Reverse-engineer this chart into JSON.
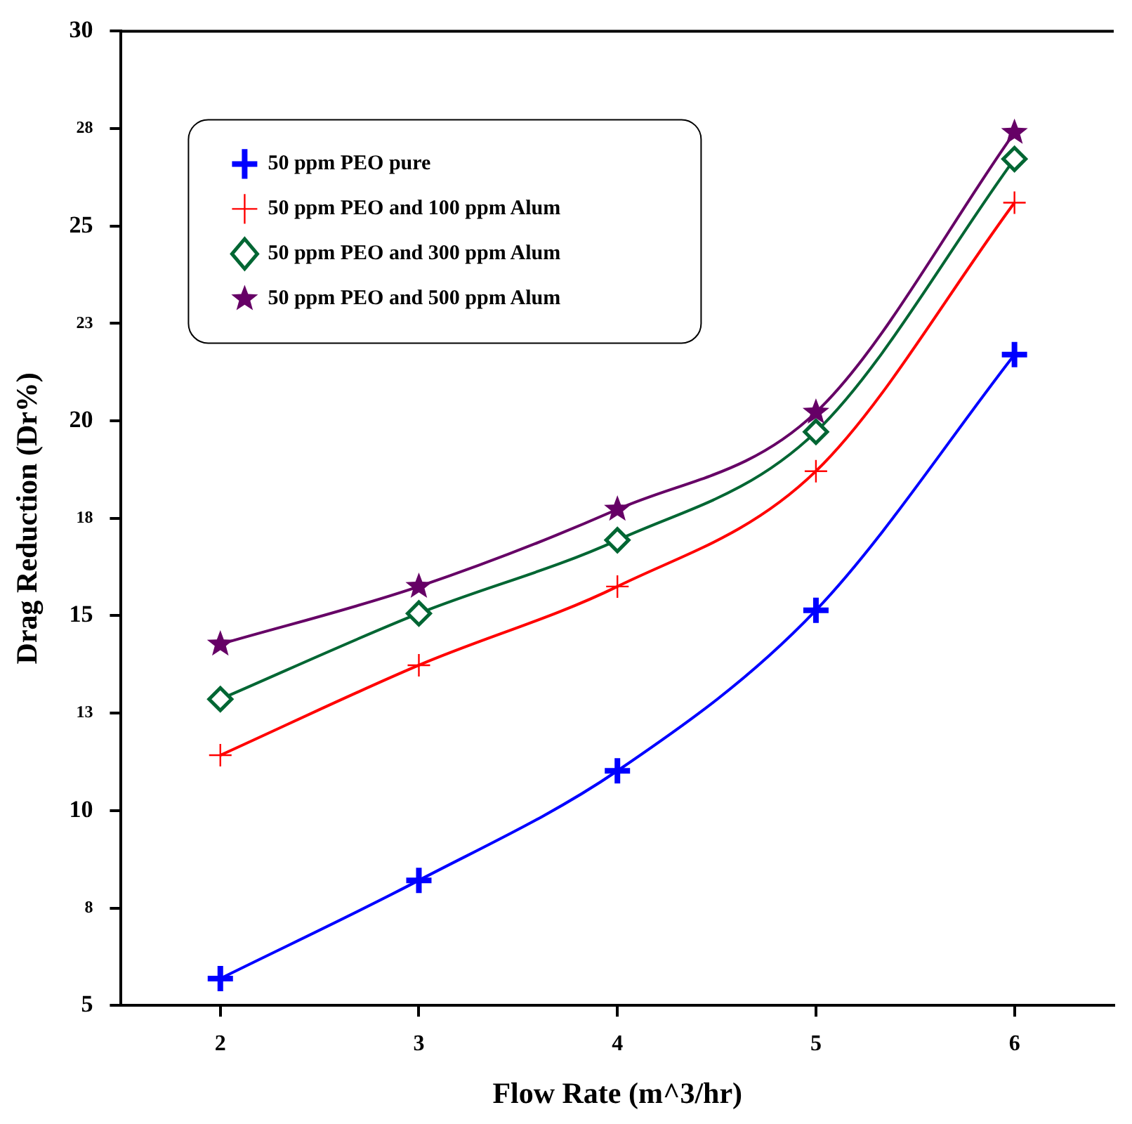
{
  "chart_data": {
    "type": "line",
    "xlabel": "Flow Rate (m^3/hr)",
    "ylabel": "Drag Reduction (Dr%)",
    "x": [
      2,
      3,
      4,
      5,
      6
    ],
    "xlim": [
      1.5,
      6.5
    ],
    "xticks": [
      2,
      3,
      4,
      5,
      6
    ],
    "ylim": [
      5,
      30
    ],
    "yticks": [
      5,
      {
        "value": 7.5,
        "label": "8"
      },
      10,
      {
        "value": 12.5,
        "label": "13"
      },
      15,
      {
        "value": 17.5,
        "label": "18"
      },
      20,
      {
        "value": 22.5,
        "label": "23"
      },
      25,
      {
        "value": 27.5,
        "label": "28"
      },
      30
    ],
    "grid": false,
    "legend": "top left",
    "line_style": "solid",
    "series": [
      {
        "name": "50 ppm PEO pure",
        "color": "#0000ff",
        "marker": "cross",
        "values": [
          5.69,
          8.21,
          11.02,
          15.14,
          21.7
        ]
      },
      {
        "name": "50 ppm PEO and 100 ppm Alum",
        "color": "#ff0000",
        "marker": "cross",
        "values": [
          11.42,
          13.73,
          15.75,
          18.71,
          25.6
        ]
      },
      {
        "name": "50 ppm PEO and 300 ppm Alum",
        "color": "#006633",
        "marker": "diamond",
        "values": [
          12.86,
          15.06,
          16.94,
          19.72,
          26.72
        ]
      },
      {
        "name": "50 ppm PEO and 500 ppm Alum",
        "color": "#660066",
        "marker": "star",
        "values": [
          14.27,
          15.75,
          17.73,
          20.22,
          27.4
        ]
      }
    ]
  }
}
